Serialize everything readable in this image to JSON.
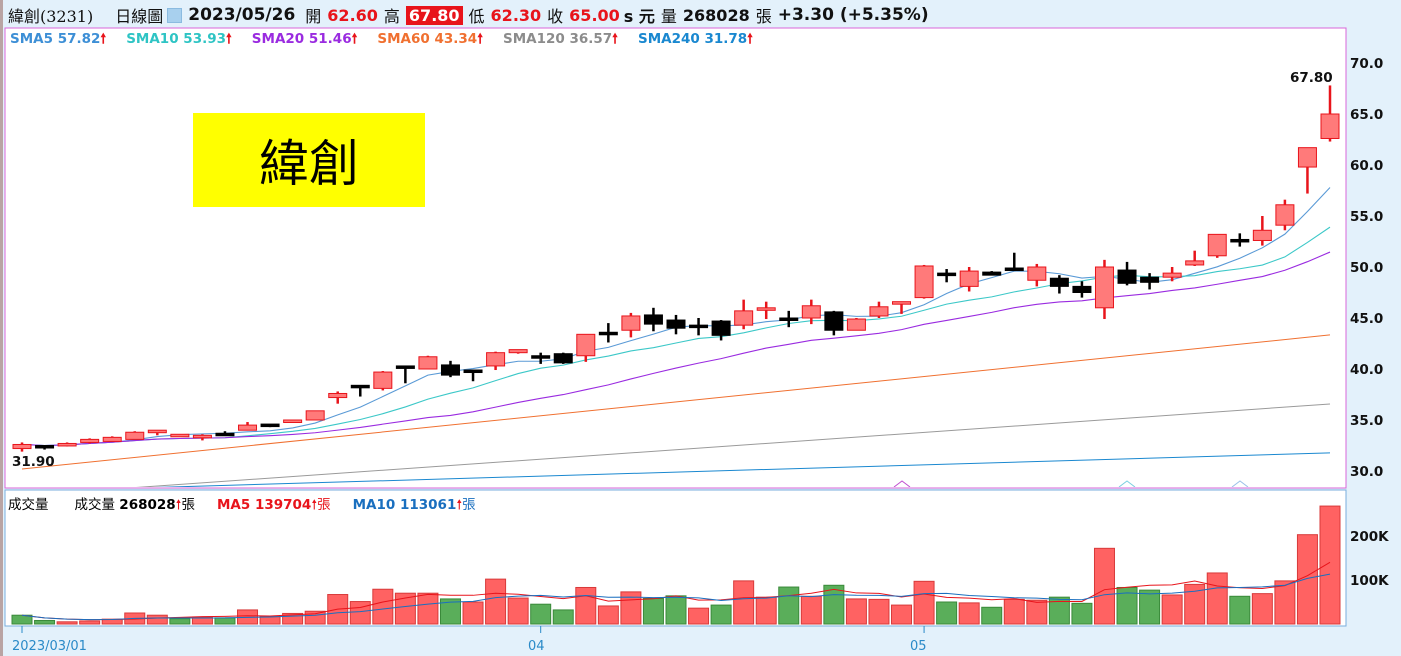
{
  "header": {
    "stock": "緯創(3231)",
    "period": "日線圖",
    "date": "2023/05/26",
    "open_label": "開",
    "open": "62.60",
    "high_label": "高",
    "high": "67.80",
    "low_label": "低",
    "low": "62.30",
    "close_label": "收",
    "close": "65.00",
    "unit": "s 元",
    "volume_label": "量",
    "volume": "268028",
    "volume_unit": "張",
    "change": "+3.30 (+5.35%)"
  },
  "sma_legend": [
    {
      "label": "SMA5 57.82",
      "color": "#3d8fd6"
    },
    {
      "label": "SMA10 53.93",
      "color": "#2ec4c4"
    },
    {
      "label": "SMA20 51.46",
      "color": "#9a2be0"
    },
    {
      "label": "SMA60 43.34",
      "color": "#f07030"
    },
    {
      "label": "SMA120 36.57",
      "color": "#8c8c8c"
    },
    {
      "label": "SMA240 31.78",
      "color": "#1a88d0"
    }
  ],
  "arrow": "🠕",
  "stock_label": "緯創",
  "volume_legend": {
    "title": "成交量",
    "vol_label": "成交量",
    "vol_value": "268028",
    "vol_unit": "張",
    "vol_color": "#111111",
    "ma5_label": "MA5 139704",
    "ma5_unit": "張",
    "ma5_color": "#e8141b",
    "ma10_label": "MA10 113061",
    "ma10_unit": "張",
    "ma10_color": "#1a6fbf"
  },
  "chart_data": [
    {
      "type": "candlestick",
      "ylim": [
        28.4,
        71.5
      ],
      "yticks": [
        "70.0",
        "65.0",
        "60.0",
        "55.0",
        "50.0",
        "45.0",
        "40.0",
        "35.0",
        "30.0"
      ],
      "high_annotation": "67.80",
      "low_annotation": "31.90",
      "colors": {
        "up": "#ff7a7a",
        "up_edge": "#e8141b",
        "down": "#000000"
      },
      "ohlc": [
        [
          32.2,
          32.8,
          31.9,
          32.6
        ],
        [
          32.5,
          32.5,
          32.1,
          32.4
        ],
        [
          32.5,
          32.8,
          32.4,
          32.7
        ],
        [
          32.8,
          33.2,
          32.7,
          33.1
        ],
        [
          32.9,
          33.4,
          32.9,
          33.3
        ],
        [
          33.1,
          33.9,
          33.1,
          33.8
        ],
        [
          33.8,
          34.0,
          33.5,
          34.0
        ],
        [
          33.5,
          33.6,
          33.4,
          33.6
        ],
        [
          33.4,
          33.6,
          33.0,
          33.5
        ],
        [
          33.7,
          33.9,
          33.5,
          33.6
        ],
        [
          34.0,
          34.8,
          34.0,
          34.5
        ],
        [
          34.6,
          34.6,
          34.3,
          34.5
        ],
        [
          34.8,
          35.0,
          34.8,
          35.0
        ],
        [
          35.0,
          35.9,
          35.0,
          35.9
        ],
        [
          37.2,
          37.8,
          36.6,
          37.6
        ],
        [
          38.4,
          38.4,
          37.3,
          38.3
        ],
        [
          38.1,
          39.8,
          37.9,
          39.7
        ],
        [
          40.3,
          40.3,
          38.6,
          40.2
        ],
        [
          40.0,
          41.3,
          40.0,
          41.2
        ],
        [
          40.4,
          40.8,
          39.2,
          39.4
        ],
        [
          39.9,
          39.9,
          38.8,
          39.7
        ],
        [
          40.3,
          41.7,
          39.9,
          41.6
        ],
        [
          41.6,
          41.9,
          41.5,
          41.9
        ],
        [
          41.3,
          41.6,
          40.5,
          41.2
        ],
        [
          41.5,
          41.6,
          40.5,
          40.6
        ],
        [
          41.3,
          43.4,
          40.7,
          43.4
        ],
        [
          43.6,
          44.5,
          42.6,
          43.5
        ],
        [
          43.8,
          45.5,
          43.1,
          45.2
        ],
        [
          45.3,
          46.0,
          43.7,
          44.4
        ],
        [
          44.8,
          45.3,
          43.4,
          44.0
        ],
        [
          44.3,
          45.0,
          43.3,
          44.2
        ],
        [
          44.7,
          44.8,
          42.8,
          43.3
        ],
        [
          44.3,
          46.8,
          43.9,
          45.7
        ],
        [
          45.9,
          46.6,
          44.9,
          46.0
        ],
        [
          45.0,
          45.7,
          44.1,
          44.9
        ],
        [
          45.0,
          46.8,
          44.4,
          46.2
        ],
        [
          45.6,
          45.7,
          43.3,
          43.8
        ],
        [
          43.8,
          45.0,
          43.8,
          44.9
        ],
        [
          45.2,
          46.6,
          45.0,
          46.1
        ],
        [
          46.5,
          46.6,
          45.4,
          46.6
        ],
        [
          47.0,
          50.2,
          46.9,
          50.1
        ],
        [
          49.4,
          49.8,
          48.5,
          49.3
        ],
        [
          48.1,
          50.0,
          47.6,
          49.6
        ],
        [
          49.5,
          49.6,
          49.2,
          49.2
        ],
        [
          49.9,
          51.4,
          49.6,
          49.8
        ],
        [
          48.7,
          50.3,
          48.1,
          50.0
        ],
        [
          48.9,
          49.2,
          47.4,
          48.1
        ],
        [
          48.1,
          48.6,
          47.0,
          47.5
        ],
        [
          46.0,
          50.7,
          44.9,
          50.0
        ],
        [
          49.7,
          50.5,
          48.2,
          48.4
        ],
        [
          49.0,
          49.4,
          47.8,
          48.5
        ],
        [
          49.0,
          50.0,
          48.6,
          49.4
        ],
        [
          50.2,
          51.6,
          50.1,
          50.6
        ],
        [
          51.1,
          53.2,
          50.9,
          53.2
        ],
        [
          52.7,
          53.3,
          52.0,
          52.6
        ],
        [
          52.6,
          55.0,
          52.1,
          53.6
        ],
        [
          54.1,
          56.6,
          53.6,
          56.1
        ],
        [
          59.8,
          61.7,
          57.2,
          61.7
        ],
        [
          62.6,
          67.8,
          62.3,
          65.0
        ]
      ],
      "sma_long": [
        {
          "period": 60,
          "values": [
            30.2,
            43.34
          ],
          "color": "#f07030"
        },
        {
          "period": 120,
          "values": [
            27.6,
            36.57
          ],
          "color": "#9a9a9a"
        },
        {
          "period": 240,
          "values": [
            28.0,
            31.78
          ],
          "color": "#1a88d0"
        }
      ],
      "sma_short": [
        {
          "period": 5,
          "color": "#5a9ad6"
        },
        {
          "period": 10,
          "color": "#3cc8c8"
        },
        {
          "period": 20,
          "color": "#9a2be0"
        }
      ]
    },
    {
      "type": "bar",
      "ylim": [
        0,
        275000
      ],
      "yticks": [
        "200K",
        "100K"
      ],
      "xticks": [
        "2023/03/01",
        "04",
        "05"
      ],
      "colors": {
        "up": "#ff6262",
        "down": "#5aae5a"
      },
      "values": [
        20000,
        8000,
        5000,
        7000,
        11000,
        25000,
        20000,
        12000,
        16000,
        14000,
        32000,
        17000,
        24000,
        29000,
        67000,
        51000,
        79000,
        70000,
        70000,
        57000,
        50000,
        102000,
        59000,
        45000,
        32000,
        83000,
        41000,
        73000,
        58000,
        64000,
        36000,
        43000,
        98000,
        61000,
        84000,
        63000,
        88000,
        57000,
        56000,
        43000,
        97000,
        50000,
        48000,
        38000,
        56000,
        54000,
        61000,
        47000,
        172000,
        83000,
        77000,
        66000,
        90000,
        116000,
        63000,
        69000,
        98000,
        203000,
        268028
      ],
      "direction": [
        "down",
        "down",
        "up",
        "up",
        "up",
        "up",
        "up",
        "down",
        "up",
        "down",
        "up",
        "up",
        "up",
        "up",
        "up",
        "up",
        "up",
        "up",
        "up",
        "down",
        "up",
        "up",
        "up",
        "down",
        "down",
        "up",
        "up",
        "up",
        "down",
        "down",
        "up",
        "down",
        "up",
        "up",
        "down",
        "up",
        "down",
        "up",
        "up",
        "up",
        "up",
        "down",
        "up",
        "down",
        "up",
        "up",
        "down",
        "down",
        "up",
        "down",
        "down",
        "up",
        "up",
        "up",
        "down",
        "up",
        "up",
        "up",
        "up"
      ],
      "ma": [
        {
          "period": 5,
          "color": "#e8141b"
        },
        {
          "period": 10,
          "color": "#1a6fbf"
        }
      ]
    }
  ]
}
